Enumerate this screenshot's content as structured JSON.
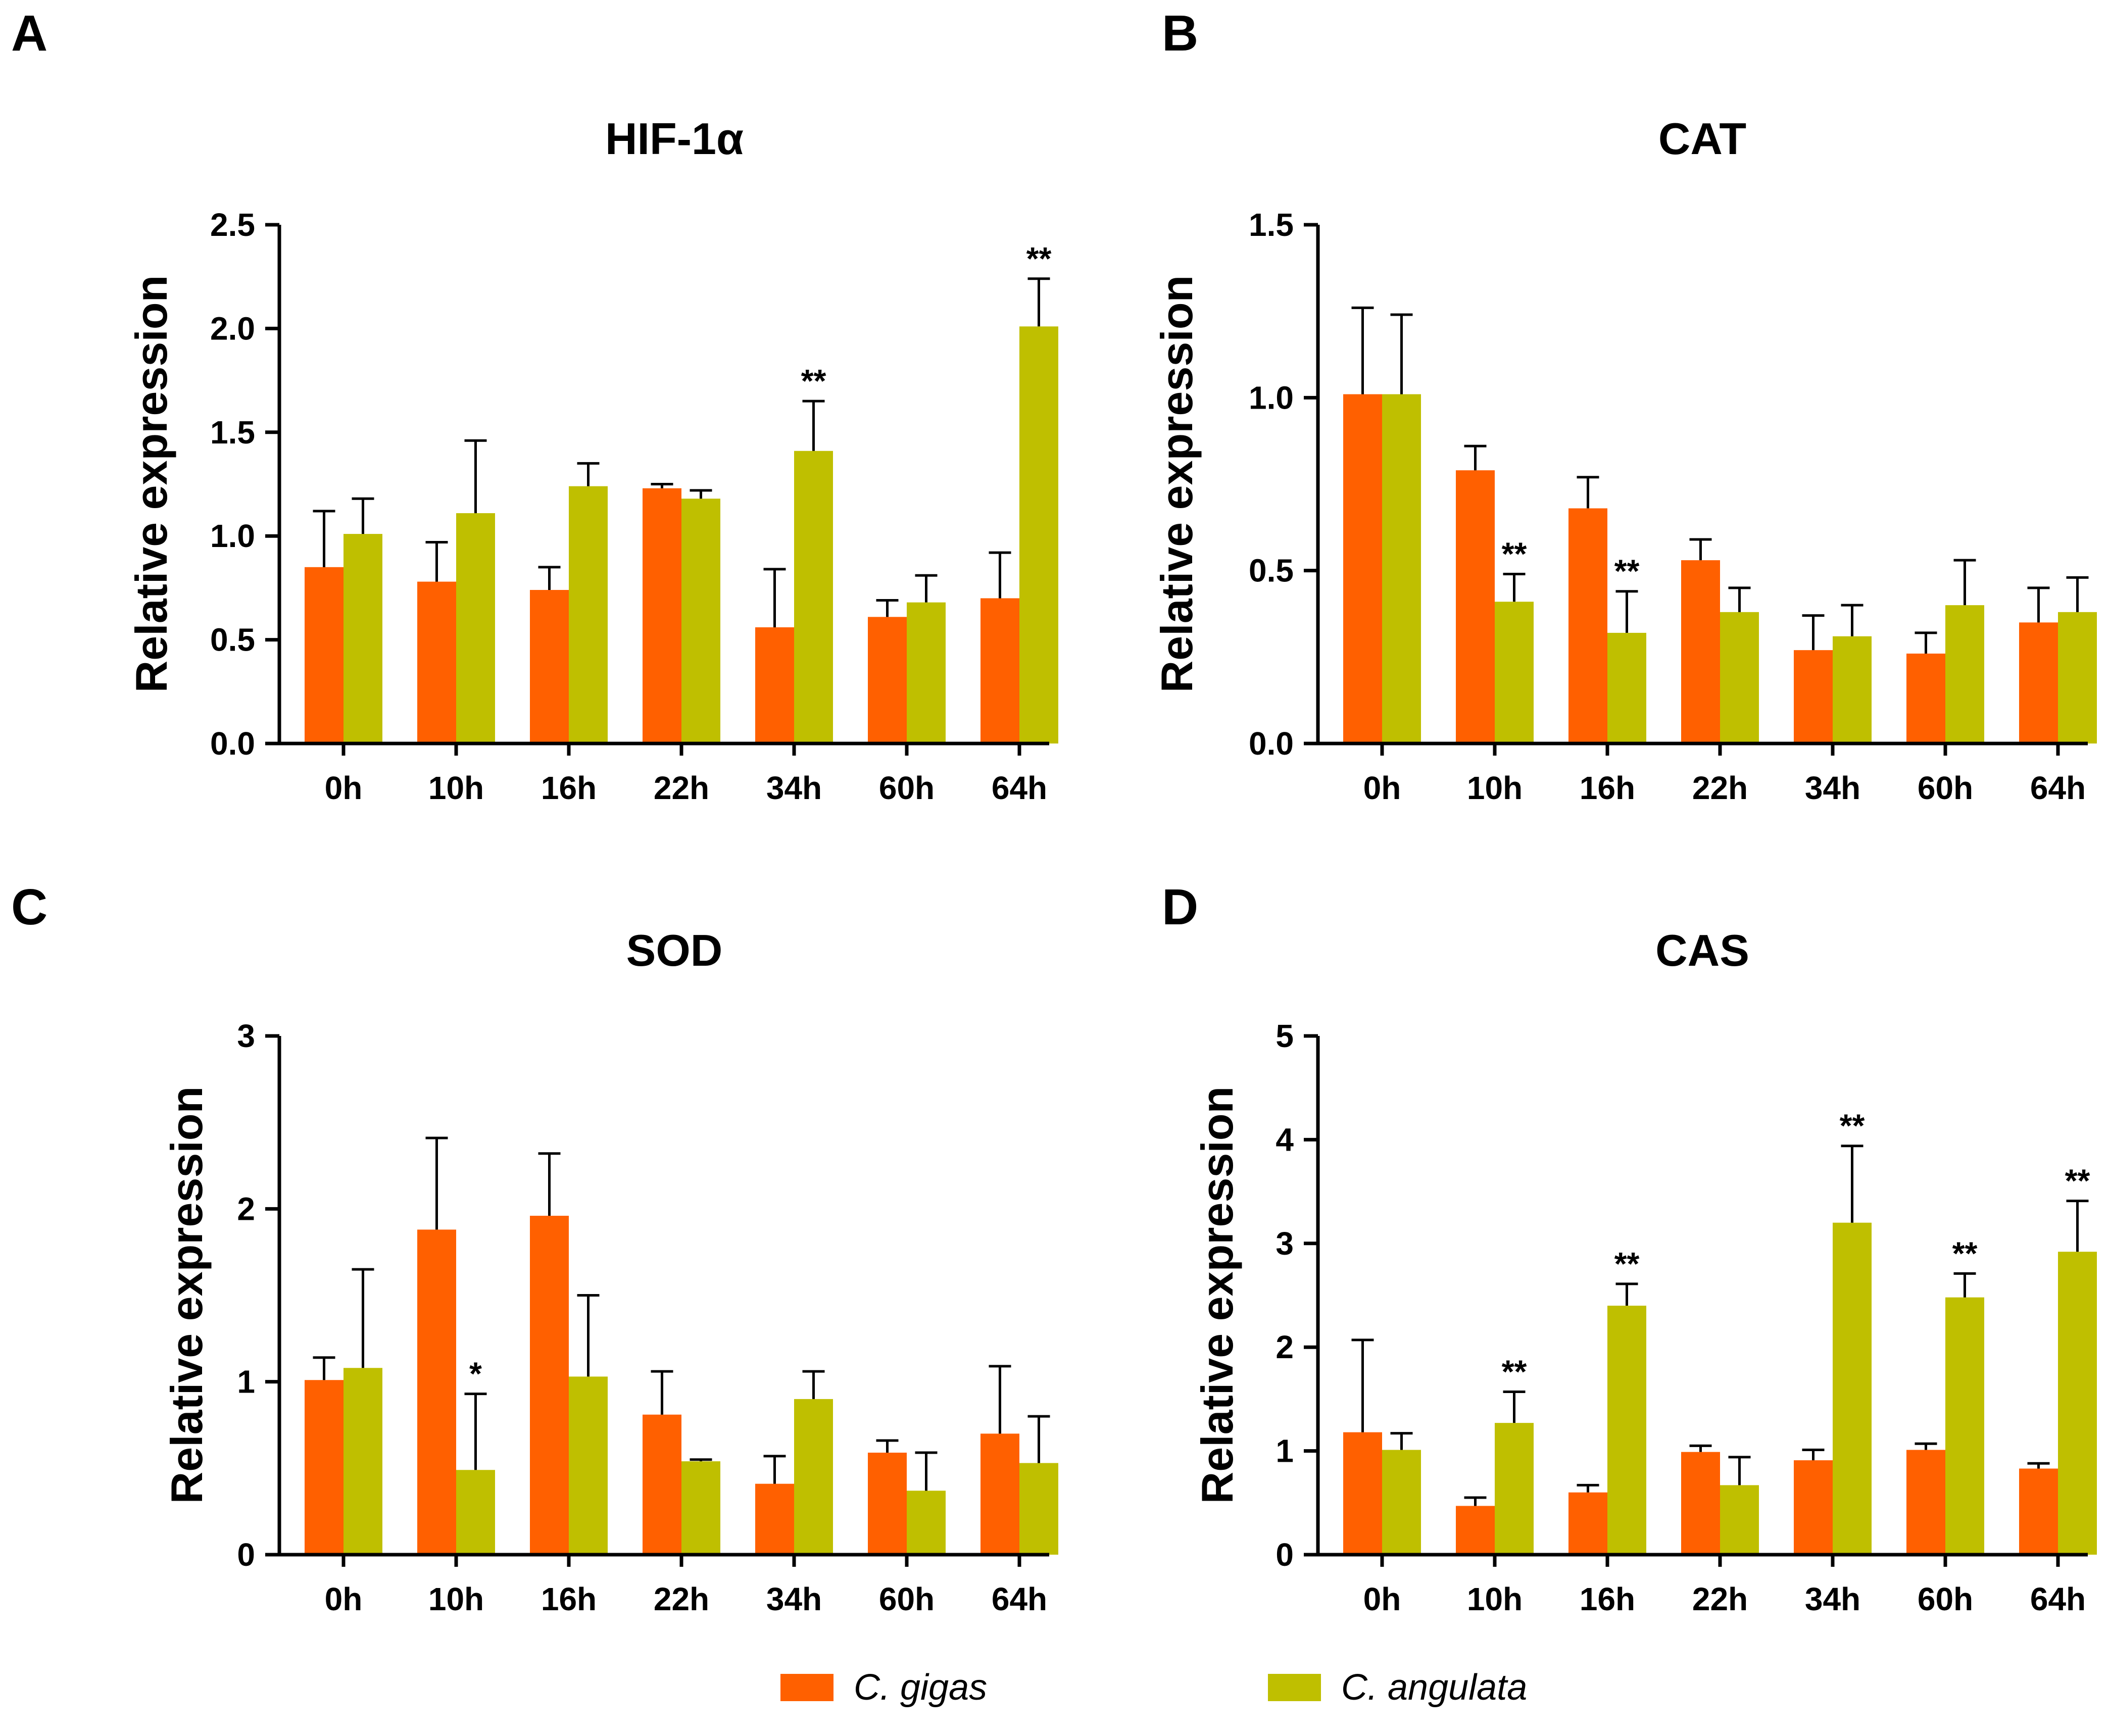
{
  "legend": {
    "series": [
      {
        "name": "C. gigas",
        "color": "#FF6000"
      },
      {
        "name": "C. angulata",
        "color": "#BFBF00"
      }
    ]
  },
  "chart_data": [
    {
      "type": "bar",
      "panel": "A",
      "title": "HIF-1α",
      "xlabel": "",
      "ylabel": "Relative expression",
      "ylim": [
        0,
        2.5
      ],
      "yticks": [
        0.0,
        0.5,
        1.0,
        1.5,
        2.0,
        2.5
      ],
      "ytick_labels": [
        "0.0",
        "0.5",
        "1.0",
        "1.5",
        "2.0",
        "2.5"
      ],
      "categories": [
        "0h",
        "10h",
        "16h",
        "22h",
        "34h",
        "60h",
        "64h"
      ],
      "series": [
        {
          "name": "C. gigas",
          "values": [
            0.85,
            0.78,
            0.74,
            1.23,
            0.56,
            0.61,
            0.7
          ],
          "errors": [
            0.27,
            0.19,
            0.11,
            0.02,
            0.28,
            0.08,
            0.22
          ]
        },
        {
          "name": "C. angulata",
          "values": [
            1.01,
            1.11,
            1.24,
            1.18,
            1.41,
            0.68,
            2.01
          ],
          "errors": [
            0.17,
            0.35,
            0.11,
            0.04,
            0.24,
            0.13,
            0.23
          ]
        }
      ],
      "significance": [
        "",
        "",
        "",
        "",
        "**",
        "",
        "**"
      ]
    },
    {
      "type": "bar",
      "panel": "B",
      "title": "CAT",
      "xlabel": "",
      "ylabel": "Relative expression",
      "ylim": [
        0,
        1.5
      ],
      "yticks": [
        0.0,
        0.5,
        1.0,
        1.5
      ],
      "ytick_labels": [
        "0.0",
        "0.5",
        "1.0",
        "1.5"
      ],
      "categories": [
        "0h",
        "10h",
        "16h",
        "22h",
        "34h",
        "60h",
        "64h"
      ],
      "series": [
        {
          "name": "C. gigas",
          "values": [
            1.01,
            0.79,
            0.68,
            0.53,
            0.27,
            0.26,
            0.35
          ],
          "errors": [
            0.25,
            0.07,
            0.09,
            0.06,
            0.1,
            0.06,
            0.1
          ]
        },
        {
          "name": "C. angulata",
          "values": [
            1.01,
            0.41,
            0.32,
            0.38,
            0.31,
            0.4,
            0.38
          ],
          "errors": [
            0.23,
            0.08,
            0.12,
            0.07,
            0.09,
            0.13,
            0.1
          ]
        }
      ],
      "significance": [
        "",
        "**",
        "**",
        "",
        "",
        "",
        ""
      ]
    },
    {
      "type": "bar",
      "panel": "C",
      "title": "SOD",
      "xlabel": "",
      "ylabel": "Relative expression",
      "ylim": [
        0,
        3
      ],
      "yticks": [
        0,
        1,
        2,
        3
      ],
      "ytick_labels": [
        "0",
        "1",
        "2",
        "3"
      ],
      "categories": [
        "0h",
        "10h",
        "16h",
        "22h",
        "34h",
        "60h",
        "64h"
      ],
      "series": [
        {
          "name": "C. gigas",
          "values": [
            1.01,
            1.88,
            1.96,
            0.81,
            0.41,
            0.59,
            0.7
          ],
          "errors": [
            0.13,
            0.53,
            0.36,
            0.25,
            0.16,
            0.07,
            0.39
          ]
        },
        {
          "name": "C. angulata",
          "values": [
            1.08,
            0.49,
            1.03,
            0.54,
            0.9,
            0.37,
            0.53
          ],
          "errors": [
            0.57,
            0.44,
            0.47,
            0.01,
            0.16,
            0.22,
            0.27
          ]
        }
      ],
      "significance": [
        "",
        "*",
        "",
        "",
        "",
        "",
        ""
      ]
    },
    {
      "type": "bar",
      "panel": "D",
      "title": "CAS",
      "xlabel": "",
      "ylabel": "Relative expression",
      "ylim": [
        0,
        5
      ],
      "yticks": [
        0,
        1,
        2,
        3,
        4,
        5
      ],
      "ytick_labels": [
        "0",
        "1",
        "2",
        "3",
        "4",
        "5"
      ],
      "categories": [
        "0h",
        "10h",
        "16h",
        "22h",
        "34h",
        "60h",
        "64h"
      ],
      "series": [
        {
          "name": "C. gigas",
          "values": [
            1.18,
            0.47,
            0.6,
            0.99,
            0.91,
            1.01,
            0.83
          ],
          "errors": [
            0.89,
            0.08,
            0.07,
            0.06,
            0.1,
            0.06,
            0.05
          ]
        },
        {
          "name": "C. angulata",
          "values": [
            1.01,
            1.27,
            2.4,
            0.67,
            3.2,
            2.48,
            2.92
          ],
          "errors": [
            0.16,
            0.3,
            0.21,
            0.27,
            0.74,
            0.23,
            0.49
          ]
        }
      ],
      "significance": [
        "",
        "**",
        "**",
        "",
        "**",
        "**",
        "**"
      ]
    }
  ]
}
